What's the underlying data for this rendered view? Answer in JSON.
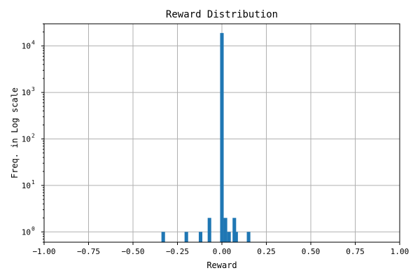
{
  "chart_data": {
    "type": "bar",
    "title": "Reward Distribution",
    "xlabel": "Reward",
    "ylabel": "Freq. in Log scale",
    "xlim": [
      -1.0,
      1.0
    ],
    "ylim": [
      0.6,
      30000
    ],
    "yscale": "log",
    "grid": true,
    "bar_color": "#1f77b4",
    "bin_width": 0.02,
    "x_ticks": [
      {
        "value": -1.0,
        "label": "−1.00"
      },
      {
        "value": -0.75,
        "label": "−0.75"
      },
      {
        "value": -0.5,
        "label": "−0.50"
      },
      {
        "value": -0.25,
        "label": "−0.25"
      },
      {
        "value": 0.0,
        "label": "0.00"
      },
      {
        "value": 0.25,
        "label": "0.25"
      },
      {
        "value": 0.5,
        "label": "0.50"
      },
      {
        "value": 0.75,
        "label": "0.75"
      },
      {
        "value": 1.0,
        "label": "1.00"
      }
    ],
    "y_ticks": [
      {
        "value": 1,
        "base": "10",
        "exp": "0"
      },
      {
        "value": 10,
        "base": "10",
        "exp": "1"
      },
      {
        "value": 100,
        "base": "10",
        "exp": "2"
      },
      {
        "value": 1000,
        "base": "10",
        "exp": "3"
      },
      {
        "value": 10000,
        "base": "10",
        "exp": "4"
      }
    ],
    "bins": [
      {
        "x": -0.33,
        "count": 1
      },
      {
        "x": -0.2,
        "count": 1
      },
      {
        "x": -0.12,
        "count": 1
      },
      {
        "x": -0.07,
        "count": 2
      },
      {
        "x": 0.0,
        "count": 19000
      },
      {
        "x": 0.02,
        "count": 2
      },
      {
        "x": 0.04,
        "count": 1
      },
      {
        "x": 0.07,
        "count": 2
      },
      {
        "x": 0.08,
        "count": 1
      },
      {
        "x": 0.15,
        "count": 1
      }
    ]
  }
}
